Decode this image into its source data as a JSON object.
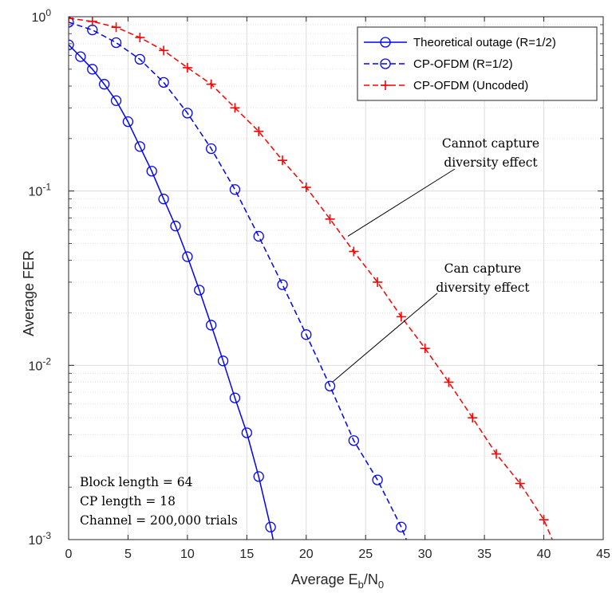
{
  "chart_data": {
    "type": "line",
    "xlabel": "Average E",
    "xlabel_sub": "b",
    "xlabel_mid": "/N",
    "xlabel_sub2": "0",
    "ylabel": "Average FER",
    "xlim": [
      0,
      45
    ],
    "ylim": [
      0.001,
      1
    ],
    "yscale": "log",
    "grid": true,
    "minor_grid": true,
    "legend_position": "top-right",
    "x_ticks": [
      "0",
      "5",
      "10",
      "15",
      "20",
      "25",
      "30",
      "35",
      "40",
      "45"
    ],
    "y_ticks": [
      {
        "base": "10",
        "exp": "0"
      },
      {
        "base": "10",
        "exp": "-1"
      },
      {
        "base": "10",
        "exp": "-2"
      },
      {
        "base": "10",
        "exp": "-3"
      }
    ],
    "series": [
      {
        "name": "Theoretical outage (R=1/2)",
        "color": "#0000ff",
        "line": "solid",
        "marker": "circle",
        "x": [
          0,
          1,
          2,
          3,
          4,
          5,
          6,
          7,
          8,
          9,
          10,
          11,
          12,
          13,
          14,
          15,
          16,
          17,
          17.5
        ],
        "y": [
          0.69,
          0.59,
          0.5,
          0.41,
          0.33,
          0.25,
          0.18,
          0.13,
          0.09,
          0.063,
          0.042,
          0.027,
          0.017,
          0.0106,
          0.0065,
          0.0041,
          0.0023,
          0.00118,
          0.0008
        ],
        "marker_count": 18
      },
      {
        "name": "CP-OFDM (R=1/2)",
        "color": "#0000ff",
        "line": "dashed",
        "marker": "circle",
        "x": [
          0,
          2,
          4,
          6,
          8,
          10,
          12,
          14,
          16,
          18,
          20,
          22,
          24,
          26,
          28,
          29
        ],
        "y": [
          0.93,
          0.84,
          0.71,
          0.57,
          0.42,
          0.28,
          0.175,
          0.102,
          0.055,
          0.029,
          0.015,
          0.0076,
          0.0037,
          0.0022,
          0.00118,
          0.0008
        ],
        "marker_count": 15
      },
      {
        "name": "CP-OFDM (Uncoded)",
        "color": "#ff0000",
        "line": "dashed",
        "marker": "plus",
        "x": [
          0,
          2,
          4,
          6,
          8,
          10,
          12,
          14,
          16,
          18,
          20,
          22,
          24,
          26,
          28,
          30,
          32,
          34,
          36,
          38,
          40,
          41
        ],
        "y": [
          0.98,
          0.94,
          0.87,
          0.76,
          0.64,
          0.51,
          0.41,
          0.3,
          0.22,
          0.15,
          0.105,
          0.069,
          0.045,
          0.03,
          0.019,
          0.0125,
          0.008,
          0.005,
          0.0031,
          0.0021,
          0.0013,
          0.0009
        ],
        "marker_count": 21
      }
    ],
    "annotations": [
      {
        "lines": [
          "Cannot capture",
          "diversity effect"
        ],
        "arrow_to": [
          23.5,
          0.055
        ]
      },
      {
        "lines": [
          "Can capture",
          "diversity effect"
        ],
        "arrow_to": [
          22,
          0.0076
        ]
      }
    ],
    "info_box": [
      "Block length = 64",
      "CP length = 18",
      "Channel = 200,000 trials"
    ]
  }
}
